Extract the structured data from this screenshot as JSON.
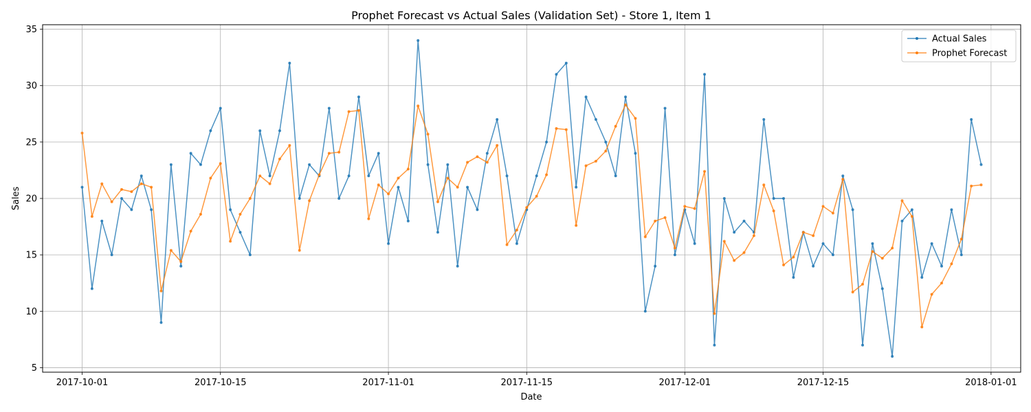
{
  "chart_data": {
    "type": "line",
    "title": "Prophet Forecast vs Actual Sales (Validation Set) - Store 1, Item 1",
    "xlabel": "Date",
    "ylabel": "Sales",
    "x_start": "2017-10-01",
    "xlim": [
      "2017-09-27",
      "2018-01-04"
    ],
    "ylim": [
      4.6,
      35.4
    ],
    "x_ticks": [
      {
        "date": "2017-10-01",
        "label": "2017-10-01"
      },
      {
        "date": "2017-10-15",
        "label": "2017-10-15"
      },
      {
        "date": "2017-11-01",
        "label": "2017-11-01"
      },
      {
        "date": "2017-11-15",
        "label": "2017-11-15"
      },
      {
        "date": "2017-12-01",
        "label": "2017-12-01"
      },
      {
        "date": "2017-12-15",
        "label": "2017-12-15"
      },
      {
        "date": "2018-01-01",
        "label": "2018-01-01"
      }
    ],
    "y_ticks": [
      5,
      10,
      15,
      20,
      25,
      30,
      35
    ],
    "grid": true,
    "legend_position": "top-right",
    "series": [
      {
        "name": "Actual Sales",
        "color": "#1f77b4",
        "values": [
          21,
          12,
          18,
          15,
          20,
          19,
          22,
          19,
          9,
          23,
          14,
          24,
          23,
          26,
          28,
          19,
          17,
          15,
          26,
          22,
          26,
          32,
          20,
          23,
          22,
          28,
          20,
          22,
          29,
          22,
          24,
          16,
          21,
          18,
          34,
          23,
          17,
          23,
          14,
          21,
          19,
          24,
          27,
          22,
          16,
          19,
          22,
          25,
          31,
          32,
          21,
          29,
          27,
          25,
          22,
          29,
          24,
          10,
          14,
          28,
          15,
          19,
          16,
          31,
          7,
          20,
          17,
          18,
          17,
          27,
          20,
          20,
          13,
          17,
          14,
          16,
          15,
          22,
          19,
          7,
          16,
          12,
          6,
          18,
          19,
          13,
          16,
          14,
          19,
          15,
          27,
          23
        ]
      },
      {
        "name": "Prophet Forecast",
        "color": "#ff7f0e",
        "values": [
          25.8,
          18.4,
          21.3,
          19.7,
          20.8,
          20.6,
          21.3,
          21.0,
          11.8,
          15.4,
          14.4,
          17.1,
          18.6,
          21.8,
          23.1,
          16.2,
          18.6,
          20.0,
          22.0,
          21.3,
          23.5,
          24.7,
          15.4,
          19.8,
          22.1,
          24.0,
          24.1,
          27.7,
          27.8,
          18.2,
          21.2,
          20.4,
          21.8,
          22.6,
          28.2,
          25.7,
          19.7,
          21.8,
          21.0,
          23.2,
          23.7,
          23.2,
          24.7,
          15.9,
          17.2,
          19.2,
          20.2,
          22.1,
          26.2,
          26.1,
          17.6,
          22.9,
          23.3,
          24.2,
          26.4,
          28.3,
          27.1,
          16.6,
          18.0,
          18.3,
          15.6,
          19.3,
          19.1,
          22.4,
          9.8,
          16.2,
          14.5,
          15.2,
          16.7,
          21.2,
          18.9,
          14.1,
          14.8,
          17.0,
          16.7,
          19.3,
          18.7,
          21.7,
          11.7,
          12.4,
          15.3,
          14.7,
          15.6,
          19.8,
          18.4,
          8.6,
          11.5,
          12.5,
          14.2,
          16.4,
          21.1,
          21.2
        ]
      }
    ]
  }
}
